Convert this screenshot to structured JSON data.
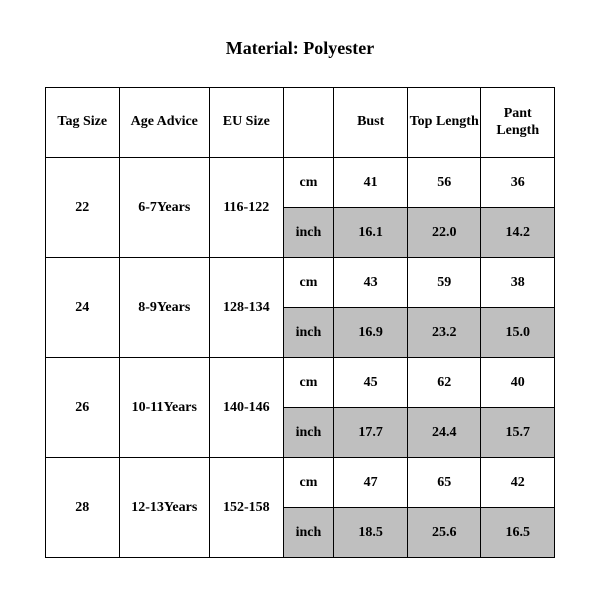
{
  "title": "Material: Polyester",
  "table": {
    "columns": [
      "Tag Size",
      "Age Advice",
      "EU Size",
      "",
      "Bust",
      "Top Length",
      "Pant Length"
    ],
    "units": [
      "cm",
      "inch"
    ],
    "rows": [
      {
        "tag": "22",
        "age": "6-7Years",
        "eu": "116-122",
        "cm": [
          "41",
          "56",
          "36"
        ],
        "inch": [
          "16.1",
          "22.0",
          "14.2"
        ]
      },
      {
        "tag": "24",
        "age": "8-9Years",
        "eu": "128-134",
        "cm": [
          "43",
          "59",
          "38"
        ],
        "inch": [
          "16.9",
          "23.2",
          "15.0"
        ]
      },
      {
        "tag": "26",
        "age": "10-11Years",
        "eu": "140-146",
        "cm": [
          "45",
          "62",
          "40"
        ],
        "inch": [
          "17.7",
          "24.4",
          "15.7"
        ]
      },
      {
        "tag": "28",
        "age": "12-13Years",
        "eu": "152-158",
        "cm": [
          "47",
          "65",
          "42"
        ],
        "inch": [
          "18.5",
          "25.6",
          "16.5"
        ]
      }
    ],
    "colors": {
      "background": "#ffffff",
      "border": "#000000",
      "shaded": "#bfbfbf",
      "text": "#000000"
    },
    "font": {
      "family": "Times New Roman",
      "header_size_pt": 14,
      "cell_size_pt": 14,
      "title_size_pt": 18,
      "weight": "bold"
    }
  }
}
